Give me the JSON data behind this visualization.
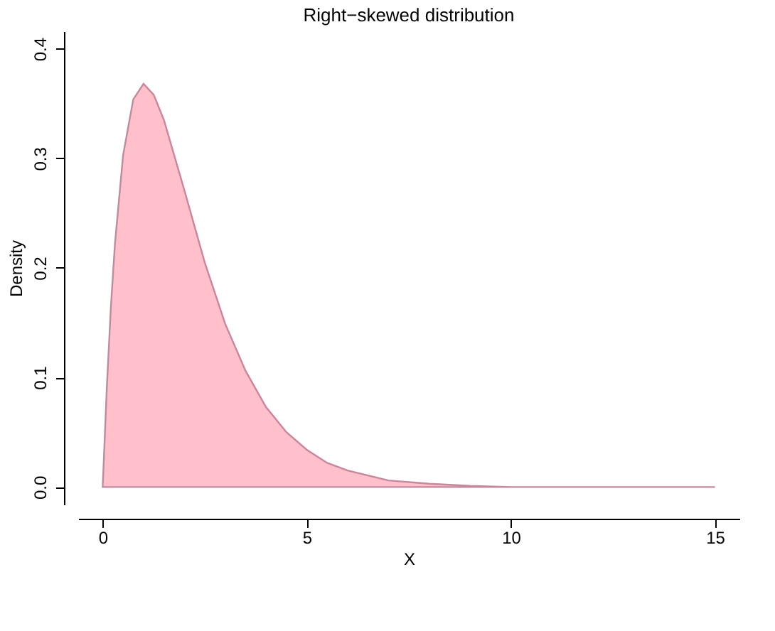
{
  "chart_data": {
    "type": "area",
    "title": "Right−skewed distribution",
    "xlabel": "X",
    "ylabel": "Density",
    "series": [
      {
        "color": "#ffc0cb",
        "x": [
          0,
          0.1,
          0.2,
          0.3,
          0.5,
          0.75,
          1,
          1.25,
          1.5,
          2,
          2.5,
          3,
          3.5,
          4,
          4.5,
          5,
          5.5,
          6,
          7,
          8,
          9,
          10,
          12,
          15
        ],
        "values": [
          0,
          0.09,
          0.164,
          0.222,
          0.303,
          0.354,
          0.368,
          0.358,
          0.335,
          0.271,
          0.205,
          0.149,
          0.106,
          0.073,
          0.05,
          0.034,
          0.022,
          0.015,
          0.006,
          0.003,
          0.001,
          0,
          0,
          0
        ]
      }
    ],
    "xlim": [
      -0.6,
      15.6
    ],
    "ylim": [
      -0.016,
      0.416
    ],
    "xticks": [
      0,
      5,
      10,
      15
    ],
    "yticks": [
      {
        "value": 0,
        "label": "0.0"
      },
      0.1,
      0.2,
      0.3,
      0.4
    ],
    "grid": false,
    "legend": false
  }
}
